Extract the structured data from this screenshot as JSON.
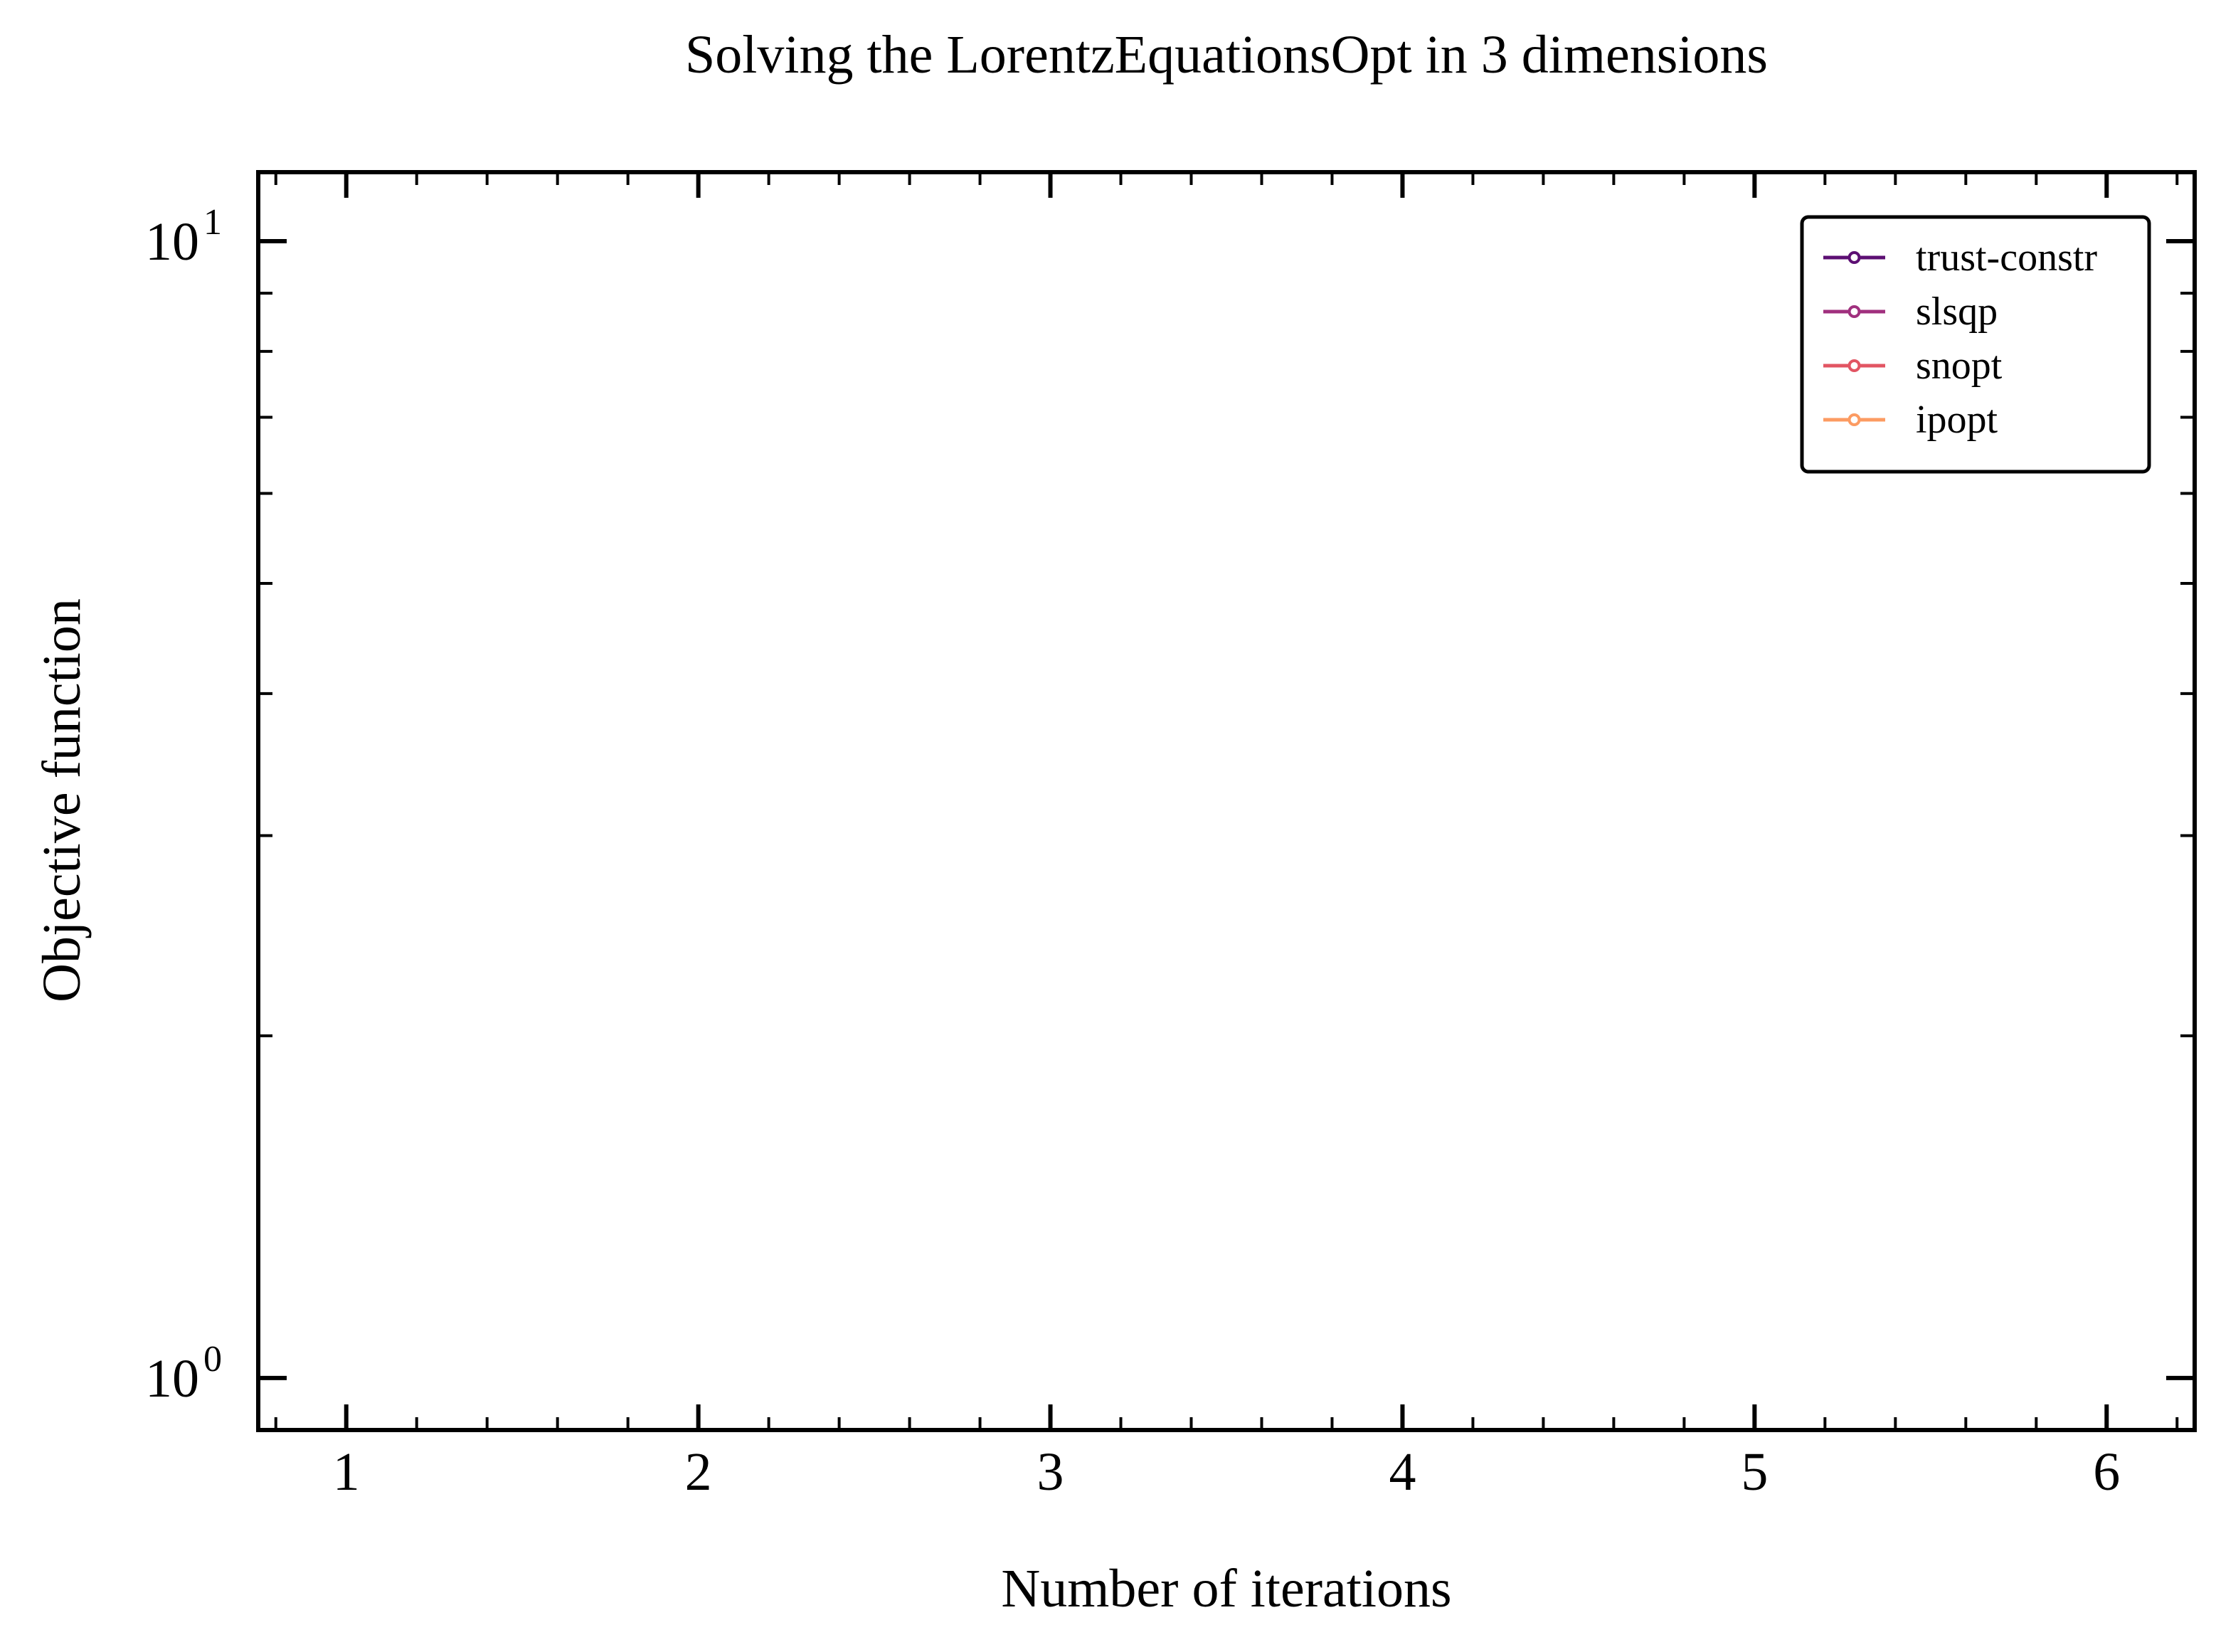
{
  "chart_data": {
    "type": "line",
    "title": "Solving the LorentzEquationsOpt in 3 dimensions",
    "xlabel": "Number of iterations",
    "ylabel": "Objective function",
    "xlim": [
      0.75,
      6.25
    ],
    "ylim": [
      0.9,
      11.5
    ],
    "yscale": "log",
    "x_ticks": [
      1,
      2,
      3,
      4,
      5,
      6
    ],
    "x_tick_labels": [
      "1",
      "2",
      "3",
      "4",
      "5",
      "6"
    ],
    "x_minor_ticks": [
      0.8,
      1.2,
      1.4,
      1.6,
      1.8,
      2.2,
      2.4,
      2.6,
      2.8,
      3.2,
      3.4,
      3.6,
      3.8,
      4.2,
      4.4,
      4.6,
      4.8,
      5.2,
      5.4,
      5.6,
      5.8,
      6.2
    ],
    "y_ticks": [
      1,
      10
    ],
    "y_tick_labels": [
      {
        "base": "10",
        "exp": "0"
      },
      {
        "base": "10",
        "exp": "1"
      }
    ],
    "y_minor_ticks": [
      2,
      3,
      4,
      5,
      6,
      7,
      8,
      9
    ],
    "legend_position": "top-right",
    "series": [
      {
        "name": "trust-constr",
        "color": "#5c0f73",
        "x": [],
        "y": []
      },
      {
        "name": "slsqp",
        "color": "#a0307e",
        "x": [],
        "y": []
      },
      {
        "name": "snopt",
        "color": "#e25563",
        "x": [],
        "y": []
      },
      {
        "name": "ipopt",
        "color": "#fc9b62",
        "x": [],
        "y": []
      }
    ]
  }
}
